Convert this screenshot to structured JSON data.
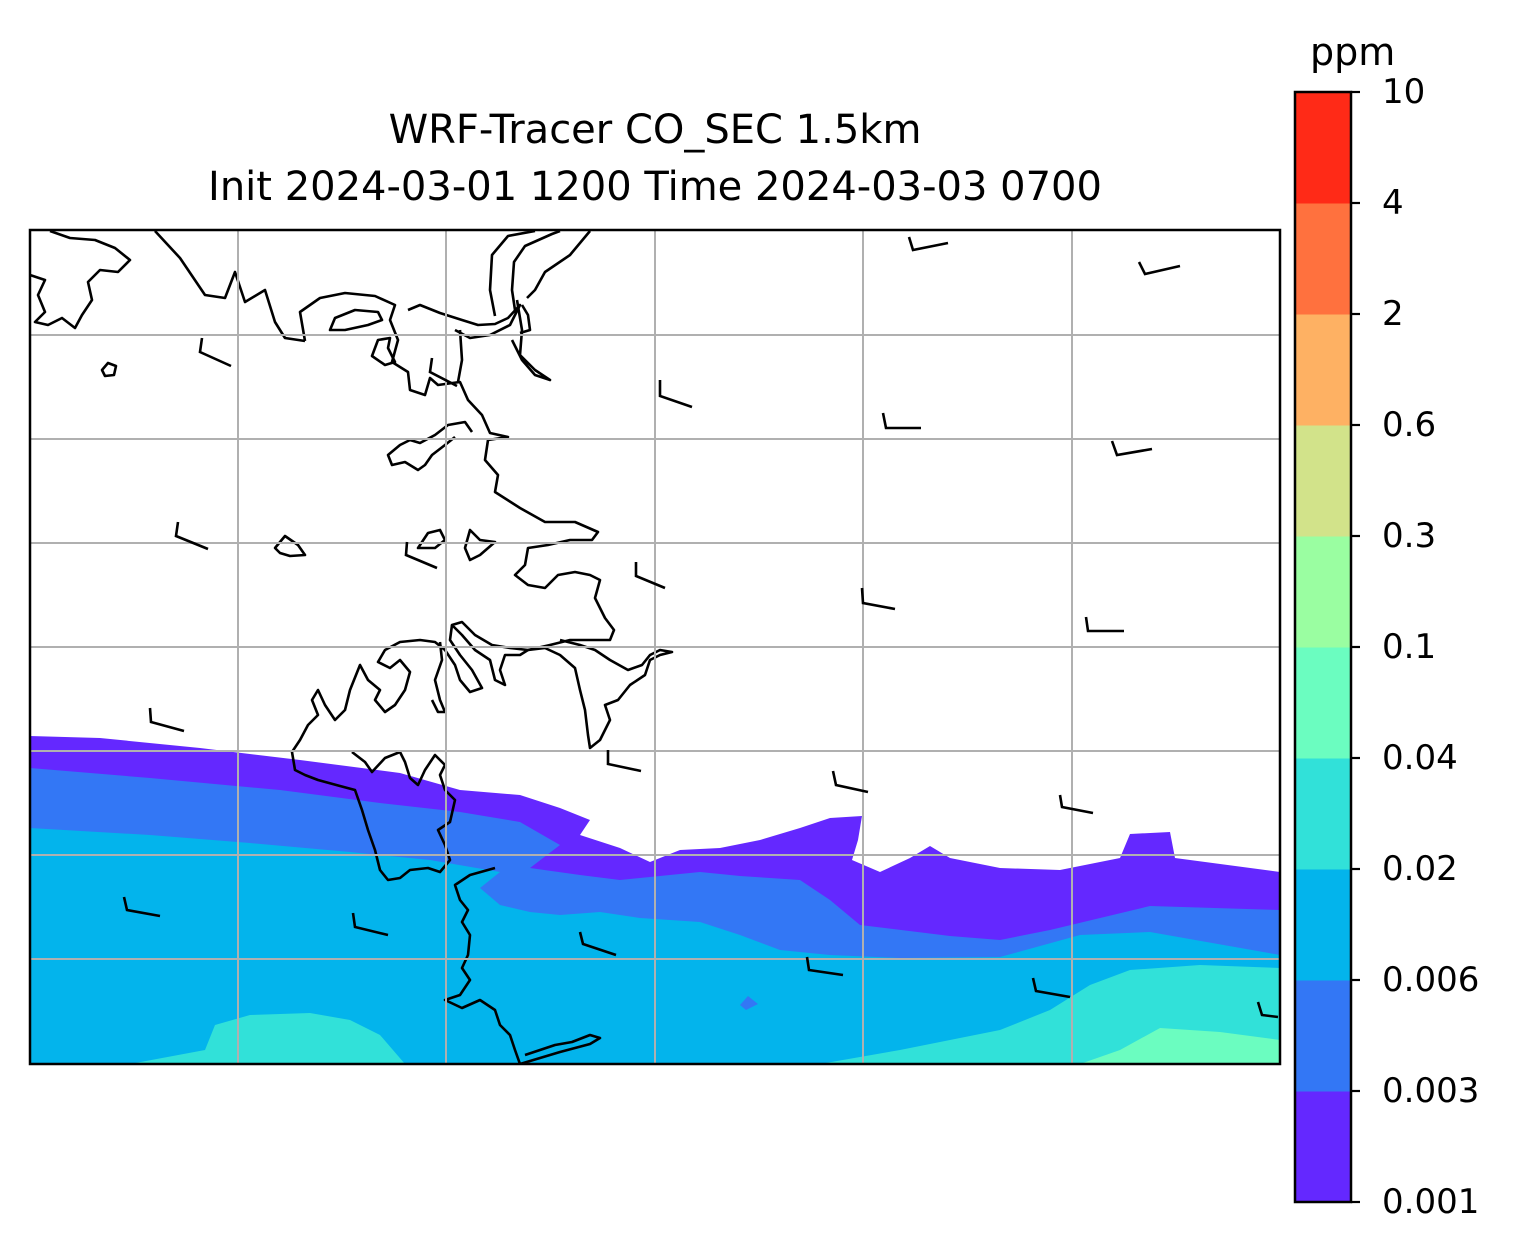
{
  "title": {
    "line1": "WRF-Tracer CO_SEC 1.5km",
    "line2": "Init 2024-03-01 1200 Time 2024-03-03 0700"
  },
  "colorbar": {
    "units": "ppm",
    "ticks": [
      "0.001",
      "0.003",
      "0.006",
      "0.02",
      "0.04",
      "0.1",
      "0.3",
      "0.6",
      "2",
      "4",
      "10"
    ],
    "colors": [
      "#6428ff",
      "#3377f5",
      "#03b4ec",
      "#31e1d9",
      "#6bfdc0",
      "#9afea1",
      "#d2e38a",
      "#feb163",
      "#ff713e",
      "#ff2a17"
    ]
  },
  "map": {
    "background": "#ffffff",
    "gridline_color": "#b0b0b0",
    "coastline_color": "#000000"
  }
}
